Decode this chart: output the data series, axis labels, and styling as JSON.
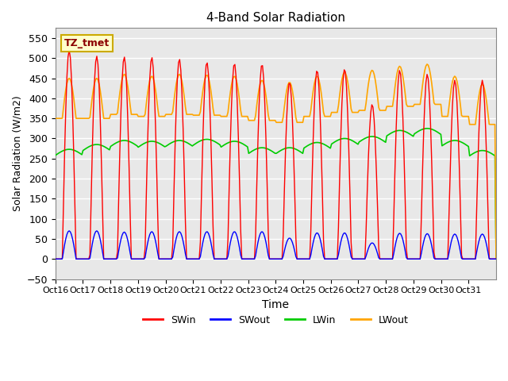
{
  "title": "4-Band Solar Radiation",
  "xlabel": "Time",
  "ylabel": "Solar Radiation (W/m2)",
  "ylim": [
    -50,
    575
  ],
  "yticks": [
    -50,
    0,
    50,
    100,
    150,
    200,
    250,
    300,
    350,
    400,
    450,
    500,
    550
  ],
  "xtick_labels": [
    "Oct 16",
    "Oct 17",
    "Oct 18",
    "Oct 19",
    "Oct 20",
    "Oct 21",
    "Oct 22",
    "Oct 23",
    "Oct 24",
    "Oct 25",
    "Oct 26",
    "Oct 27",
    "Oct 28",
    "Oct 29",
    "Oct 30",
    "Oct 31"
  ],
  "colors": {
    "SWin": "#ff0000",
    "SWout": "#0000ff",
    "LWin": "#00cc00",
    "LWout": "#ffa500"
  },
  "legend_label": "TZ_tmet",
  "bg_color": "#e8e8e8",
  "grid_color": "#ffffff"
}
